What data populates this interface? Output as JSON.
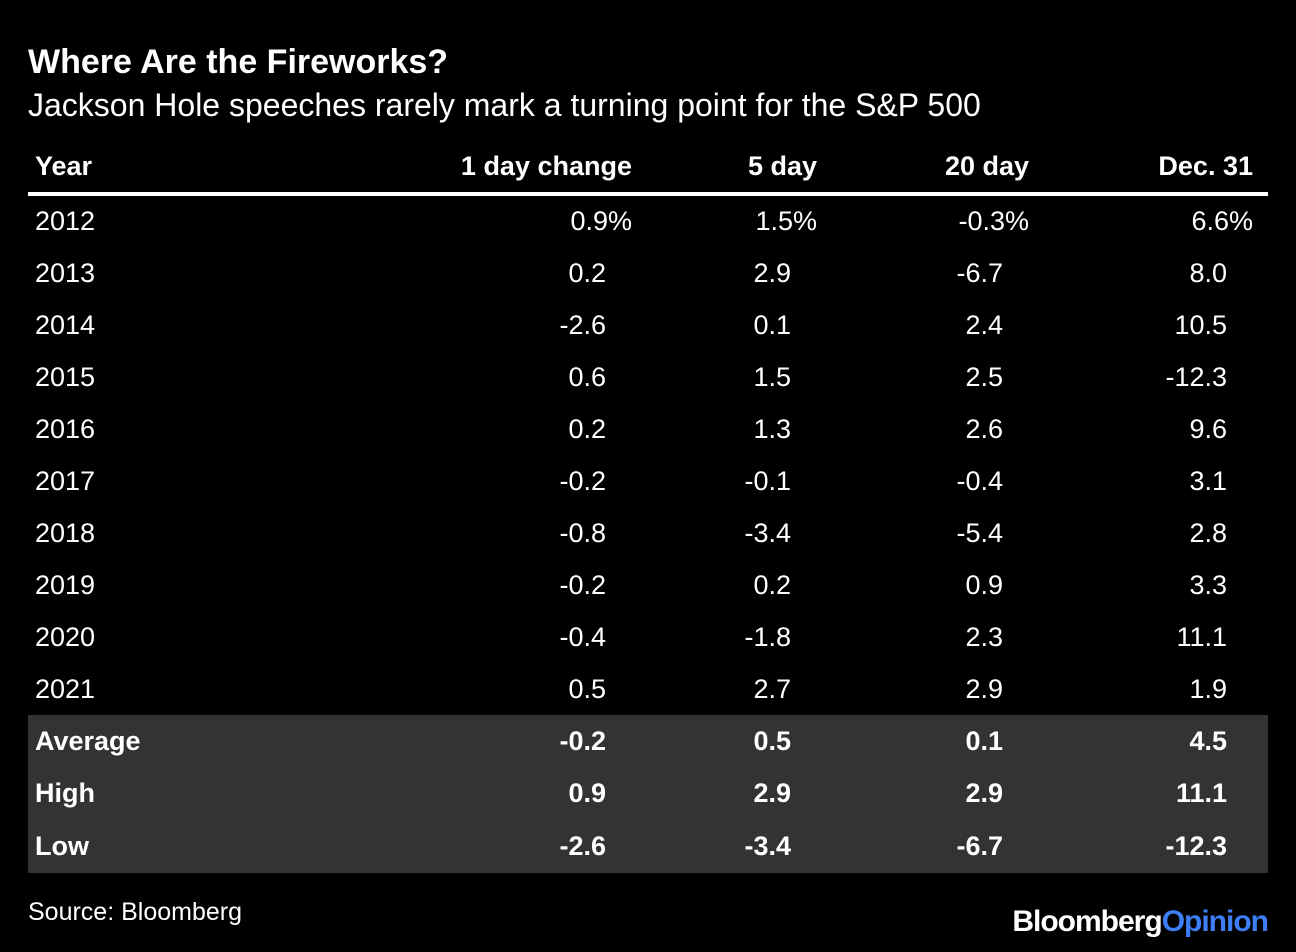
{
  "title": "Where Are the Fireworks?",
  "subtitle": "Jackson Hole speeches rarely mark a turning point for the S&P 500",
  "source": "Source: Bloomberg",
  "logo": {
    "part1": "Bloomberg",
    "part2": "Opinion",
    "part2_color": "#3d7ef5"
  },
  "colors": {
    "background": "#000000",
    "text": "#ffffff",
    "summary_bg": "#333333"
  },
  "chart_data": {
    "type": "table",
    "title": "Where Are the Fireworks?",
    "subtitle": "Jackson Hole speeches rarely mark a turning point for the S&P 500",
    "columns": [
      "Year",
      "1 day change",
      "5 day",
      "20 day",
      "Dec. 31"
    ],
    "rows": [
      [
        "2012",
        "0.9%",
        "1.5%",
        "-0.3%",
        "6.6%"
      ],
      [
        "2013",
        "0.2",
        "2.9",
        "-6.7",
        "8.0"
      ],
      [
        "2014",
        "-2.6",
        "0.1",
        "2.4",
        "10.5"
      ],
      [
        "2015",
        "0.6",
        "1.5",
        "2.5",
        "-12.3"
      ],
      [
        "2016",
        "0.2",
        "1.3",
        "2.6",
        "9.6"
      ],
      [
        "2017",
        "-0.2",
        "-0.1",
        "-0.4",
        "3.1"
      ],
      [
        "2018",
        "-0.8",
        "-3.4",
        "-5.4",
        "2.8"
      ],
      [
        "2019",
        "-0.2",
        "0.2",
        "0.9",
        "3.3"
      ],
      [
        "2020",
        "-0.4",
        "-1.8",
        "2.3",
        "11.1"
      ],
      [
        "2021",
        "0.5",
        "2.7",
        "2.9",
        "1.9"
      ]
    ],
    "summary": [
      [
        "Average",
        "-0.2",
        "0.5",
        "0.1",
        "4.5"
      ],
      [
        "High",
        "0.9",
        "2.9",
        "2.9",
        "11.1"
      ],
      [
        "Low",
        "-2.6",
        "-3.4",
        "-6.7",
        "-12.3"
      ]
    ]
  }
}
